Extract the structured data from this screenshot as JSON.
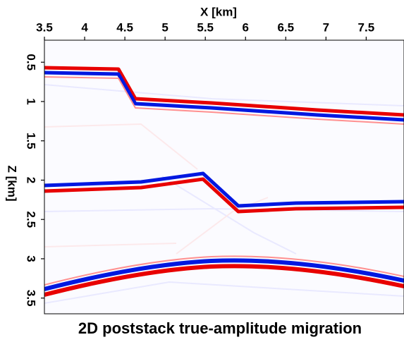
{
  "chart_data": {
    "type": "image",
    "title": "2D poststack true-amplitude migration",
    "xlabel": "X [km]",
    "ylabel": "Z [km]",
    "xlim": [
      3.5,
      7.97
    ],
    "ylim": [
      0.22,
      3.7
    ],
    "y_inverted": true,
    "xticks": [
      3.5,
      4,
      4.5,
      5,
      5.5,
      6,
      6.5,
      7,
      7.5
    ],
    "yticks": [
      0.5,
      1,
      1.5,
      2,
      2.5,
      3,
      3.5
    ]
  }
}
